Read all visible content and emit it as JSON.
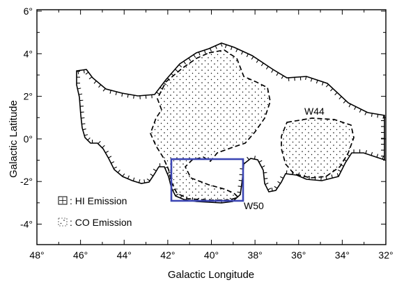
{
  "figure": {
    "xlabel": "Galactic Longitude",
    "ylabel": "Galactic Latitude",
    "x_ticks": [
      "48°",
      "46°",
      "44°",
      "42°",
      "40°",
      "38°",
      "36°",
      "34°",
      "32°"
    ],
    "y_ticks": [
      "6°",
      "4°",
      "2°",
      "0°",
      "-2°",
      "-4°"
    ],
    "labels": {
      "w44": "W44",
      "w50": "W50"
    },
    "legend": [
      {
        "label": ": HI Emission",
        "pattern": "hi"
      },
      {
        "label": ": CO Emission",
        "pattern": "co"
      }
    ],
    "colors": {
      "highlight_box": "#3c46b4",
      "ink": "#000000"
    }
  }
}
